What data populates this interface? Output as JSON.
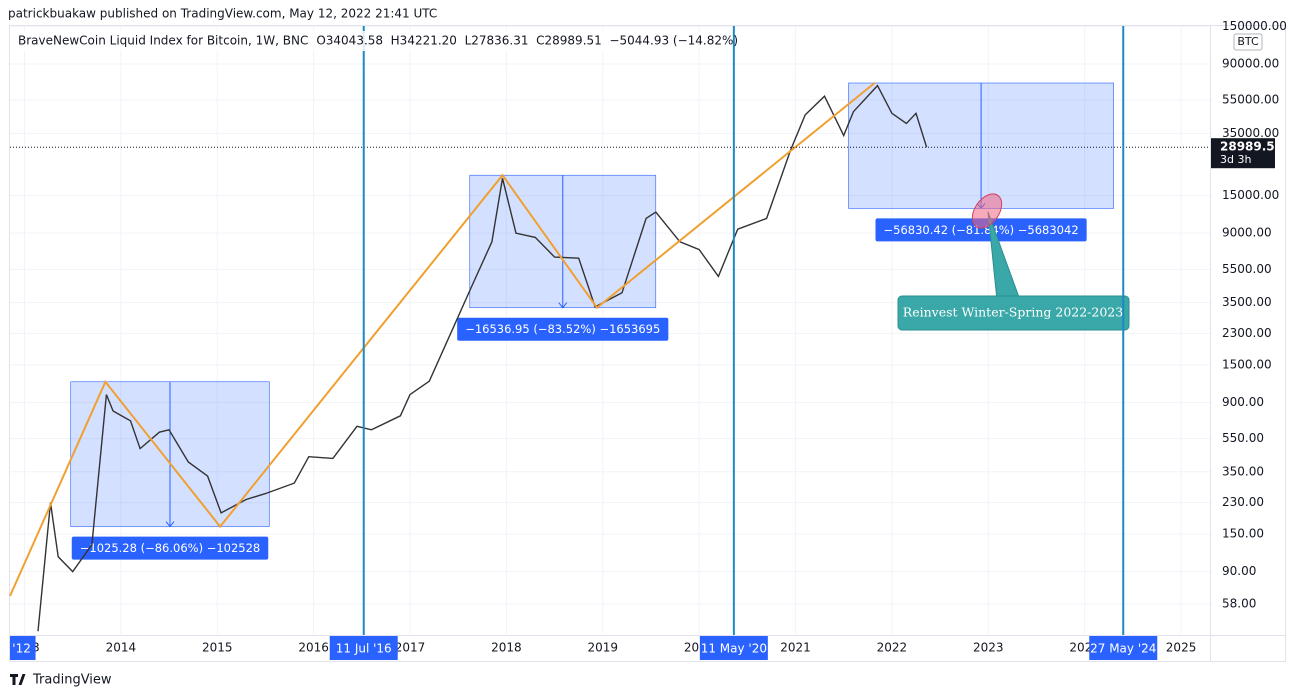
{
  "header": "patrickbuakaw published on TradingView.com, May 12, 2022 21:41 UTC",
  "footer": "TradingView",
  "chart_data": {
    "type": "line",
    "title": "BraveNewCoin Liquid Index for Bitcoin, 1W, BNC",
    "ohlc_text": "O34043.58  H34221.20  L27836.31  C28989.51  −5044.93 (−14.82%)",
    "currency": "BTC",
    "last_price": 28989.51,
    "countdown": "3d 3h",
    "color": "#333333",
    "x": [
      2013.14,
      2013.27,
      2013.35,
      2013.5,
      2013.7,
      2013.85,
      2013.92,
      2014.1,
      2014.2,
      2014.4,
      2014.5,
      2014.7,
      2014.9,
      2015.04,
      2015.3,
      2015.5,
      2015.8,
      2015.95,
      2016.2,
      2016.45,
      2016.6,
      2016.9,
      2017.0,
      2017.2,
      2017.45,
      2017.65,
      2017.85,
      2017.96,
      2018.1,
      2018.3,
      2018.5,
      2018.75,
      2018.92,
      2019.2,
      2019.45,
      2019.55,
      2019.8,
      2020.0,
      2020.2,
      2020.4,
      2020.7,
      2020.95,
      2021.1,
      2021.3,
      2021.5,
      2021.6,
      2021.85,
      2022.0,
      2022.15,
      2022.25,
      2022.36
    ],
    "values": [
      40,
      230,
      110,
      90,
      130,
      1000,
      800,
      700,
      480,
      600,
      620,
      400,
      330,
      200,
      240,
      260,
      300,
      430,
      420,
      650,
      620,
      750,
      1000,
      1200,
      2500,
      4500,
      8000,
      19000,
      9000,
      8500,
      6500,
      6400,
      3300,
      4000,
      11000,
      12000,
      8000,
      7200,
      5000,
      9500,
      11000,
      28000,
      45000,
      58000,
      34000,
      47000,
      67000,
      46000,
      40000,
      46000,
      28989.51
    ],
    "xlim": [
      2012.85,
      2025.3
    ],
    "xticks": [
      2013,
      2014,
      2015,
      2016,
      2017,
      2018,
      2019,
      2020,
      2021,
      2022,
      2023,
      2024,
      2025
    ],
    "ylim": [
      38.5,
      155000
    ],
    "log_scale": true,
    "grid": true,
    "yticks": [
      {
        "value": 150000,
        "label": "150000.00"
      },
      {
        "value": 90000,
        "label": "90000.00"
      },
      {
        "value": 55000,
        "label": "55000.00"
      },
      {
        "value": 35000,
        "label": "35000.00"
      },
      {
        "value": 15000,
        "label": "15000.00"
      },
      {
        "value": 9000,
        "label": "9000.00"
      },
      {
        "value": 5500,
        "label": "5500.00"
      },
      {
        "value": 3500,
        "label": "3500.00"
      },
      {
        "value": 2300,
        "label": "2300.00"
      },
      {
        "value": 1500,
        "label": "1500.00"
      },
      {
        "value": 900,
        "label": "900.00"
      },
      {
        "value": 550,
        "label": "550.00"
      },
      {
        "value": 350,
        "label": "350.00"
      },
      {
        "value": 230,
        "label": "230.00"
      },
      {
        "value": 150,
        "label": "150.00"
      },
      {
        "value": 90,
        "label": "90.00"
      },
      {
        "value": 58,
        "label": "58.00"
      }
    ],
    "date_tags": [
      {
        "x": 2012.97,
        "label": "'12"
      }
    ],
    "vertical_lines": [
      {
        "x": 2016.52,
        "label": "11 Jul '16"
      },
      {
        "x": 2020.36,
        "label": "11 May '20"
      },
      {
        "x": 2024.4,
        "label": "27 May '24"
      }
    ],
    "trend_line": {
      "color": "#f0a030",
      "x": [
        2012.85,
        2013.84,
        2015.03,
        2017.96,
        2018.94,
        2021.82
      ],
      "values": [
        64.6,
        1191.4,
        166.1,
        19800,
        3263,
        69441
      ]
    },
    "measures": [
      {
        "x": [
          2013.48,
          2015.54
        ],
        "range": [
          1191.4,
          166.1
        ],
        "label": "−1025.28 (−86.06%) −102528"
      },
      {
        "x": [
          2017.62,
          2019.55
        ],
        "range": [
          19800,
          3263
        ],
        "label": "−16536.95 (−83.52%) −1653695"
      },
      {
        "x": [
          2021.55,
          2024.3
        ],
        "range": [
          69441,
          12611
        ],
        "label": "−56830.42 (−81.84%) −5683042"
      }
    ],
    "annotation": "Reinvest Winter-Spring 2022-2023"
  }
}
